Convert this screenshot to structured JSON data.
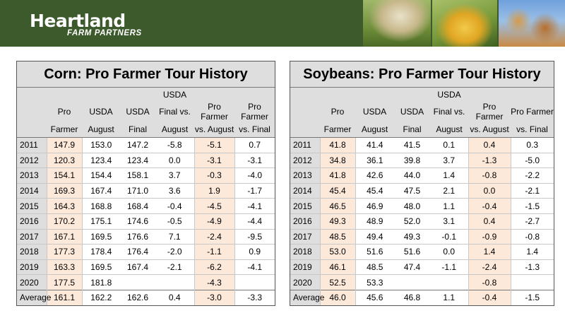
{
  "header": {
    "logo_main": "Heartland",
    "logo_sub": "FARM PARTNERS",
    "photos": [
      "cow-photo",
      "corn-photo",
      "soybean-photo"
    ]
  },
  "corn": {
    "title": "Corn:  Pro Farmer Tour History",
    "columns": [
      [
        "",
        "",
        ""
      ],
      [
        "",
        "Pro",
        "Farmer"
      ],
      [
        "",
        "USDA",
        "August"
      ],
      [
        "",
        "USDA",
        "Final"
      ],
      [
        "USDA",
        "Final vs.",
        "August"
      ],
      [
        "",
        "Pro Farmer",
        "vs. August"
      ],
      [
        "",
        "Pro Farmer",
        "vs. Final"
      ]
    ],
    "rows": [
      [
        "2011",
        "147.9",
        "153.0",
        "147.2",
        "-5.8",
        "-5.1",
        "0.7"
      ],
      [
        "2012",
        "120.3",
        "123.4",
        "123.4",
        "0.0",
        "-3.1",
        "-3.1"
      ],
      [
        "2013",
        "154.1",
        "154.4",
        "158.1",
        "3.7",
        "-0.3",
        "-4.0"
      ],
      [
        "2014",
        "169.3",
        "167.4",
        "171.0",
        "3.6",
        "1.9",
        "-1.7"
      ],
      [
        "2015",
        "164.3",
        "168.8",
        "168.4",
        "-0.4",
        "-4.5",
        "-4.1"
      ],
      [
        "2016",
        "170.2",
        "175.1",
        "174.6",
        "-0.5",
        "-4.9",
        "-4.4"
      ],
      [
        "2017",
        "167.1",
        "169.5",
        "176.6",
        "7.1",
        "-2.4",
        "-9.5"
      ],
      [
        "2018",
        "177.3",
        "178.4",
        "176.4",
        "-2.0",
        "-1.1",
        "0.9"
      ],
      [
        "2019",
        "163.3",
        "169.5",
        "167.4",
        "-2.1",
        "-6.2",
        "-4.1"
      ],
      [
        "2020",
        "177.5",
        "181.8",
        "",
        "",
        "-4.3",
        ""
      ],
      [
        "Average",
        "161.1",
        "162.2",
        "162.6",
        "0.4",
        "-3.0",
        "-3.3"
      ]
    ]
  },
  "soybeans": {
    "title": "Soybeans:  Pro Farmer Tour History",
    "columns": [
      [
        "",
        "",
        ""
      ],
      [
        "",
        "Pro",
        "Farmer"
      ],
      [
        "",
        "USDA",
        "August"
      ],
      [
        "",
        "USDA",
        "Final"
      ],
      [
        "USDA",
        "Final vs.",
        "August"
      ],
      [
        "",
        "Pro Farmer",
        "vs. August"
      ],
      [
        "",
        "Pro Farmer",
        "vs. Final"
      ]
    ],
    "rows": [
      [
        "2011",
        "41.8",
        "41.4",
        "41.5",
        "0.1",
        "0.4",
        "0.3"
      ],
      [
        "2012",
        "34.8",
        "36.1",
        "39.8",
        "3.7",
        "-1.3",
        "-5.0"
      ],
      [
        "2013",
        "41.8",
        "42.6",
        "44.0",
        "1.4",
        "-0.8",
        "-2.2"
      ],
      [
        "2014",
        "45.4",
        "45.4",
        "47.5",
        "2.1",
        "0.0",
        "-2.1"
      ],
      [
        "2015",
        "46.5",
        "46.9",
        "48.0",
        "1.1",
        "-0.4",
        "-1.5"
      ],
      [
        "2016",
        "49.3",
        "48.9",
        "52.0",
        "3.1",
        "0.4",
        "-2.7"
      ],
      [
        "2017",
        "48.5",
        "49.4",
        "49.3",
        "-0.1",
        "-0.9",
        "-0.8"
      ],
      [
        "2018",
        "53.0",
        "51.6",
        "51.6",
        "0.0",
        "1.4",
        "1.4"
      ],
      [
        "2019",
        "46.1",
        "48.5",
        "47.4",
        "-1.1",
        "-2.4",
        "-1.3"
      ],
      [
        "2020",
        "52.5",
        "53.3",
        "",
        "",
        "-0.8",
        ""
      ],
      [
        "Average",
        "46.0",
        "45.6",
        "46.8",
        "1.1",
        "-0.4",
        "-1.5"
      ]
    ]
  }
}
